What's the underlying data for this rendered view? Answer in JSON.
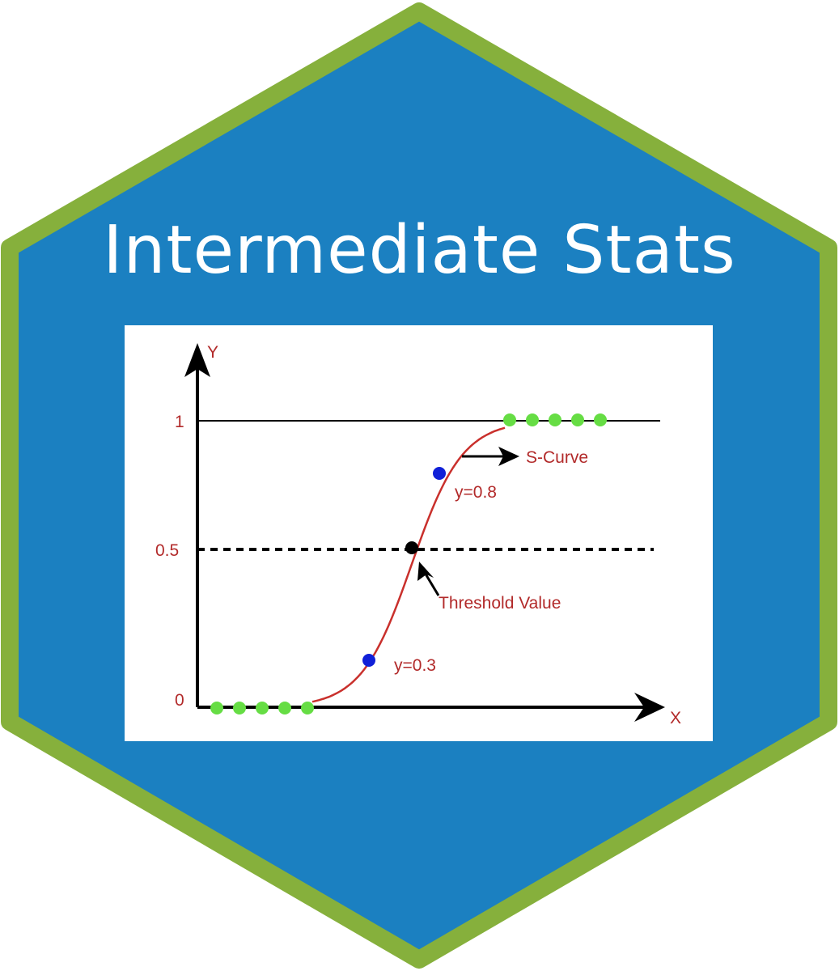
{
  "title": "Intermediate Stats",
  "colors": {
    "hex_fill": "#1b80c1",
    "hex_border": "#86b03c",
    "curve": "#c9302c",
    "label_text": "#b22a2a",
    "class_point": "#66dd44",
    "prob_point": "#1020d8",
    "threshold_point": "#000000"
  },
  "chart_data": {
    "type": "line",
    "xlabel": "X",
    "ylabel": "Y",
    "ylim": [
      0,
      1
    ],
    "y_ticks": [
      "0",
      "0.5",
      "1"
    ],
    "reference_lines": [
      {
        "y": 1,
        "style": "solid"
      },
      {
        "y": 0.5,
        "style": "dashed"
      }
    ],
    "curve": "S-shaped sigmoid rising from 0 to 1",
    "annotations": {
      "s_curve": "S-Curve",
      "threshold": "Threshold Value",
      "y_high": "y=0.8",
      "y_low": "y=0.3"
    },
    "points": [
      {
        "y": 0.3,
        "kind": "probability"
      },
      {
        "y": 0.5,
        "kind": "threshold"
      },
      {
        "y": 0.8,
        "kind": "probability"
      }
    ],
    "class_0_points": 5,
    "class_1_points": 5
  }
}
